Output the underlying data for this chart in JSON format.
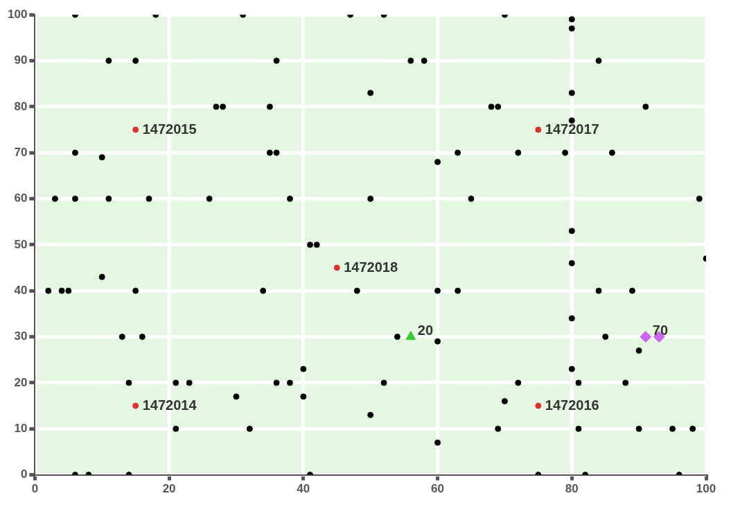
{
  "chart_data": {
    "type": "scatter",
    "xlim": [
      0,
      100
    ],
    "ylim": [
      0,
      100
    ],
    "xticks": [
      0,
      20,
      40,
      60,
      80,
      100
    ],
    "yticks": [
      0,
      10,
      20,
      30,
      40,
      50,
      60,
      70,
      80,
      90,
      100
    ],
    "grid": true,
    "legend": false,
    "marker": "circle",
    "series": [
      {
        "color": "#000000",
        "x": [
          6,
          18,
          31,
          47,
          52,
          70,
          80,
          80,
          11,
          15,
          36,
          56,
          58,
          84,
          27,
          28,
          35,
          50,
          68,
          69,
          80,
          91,
          80,
          6,
          10,
          35,
          36,
          60,
          63,
          72,
          79,
          86,
          3,
          6,
          11,
          17,
          26,
          38,
          50,
          65,
          99,
          80,
          41,
          42,
          100,
          80,
          10,
          2,
          4,
          5,
          15,
          34,
          48,
          60,
          63,
          84,
          89,
          80,
          13,
          16,
          54,
          60,
          85,
          90,
          40,
          80,
          14,
          21,
          23,
          36,
          38,
          52,
          72,
          81,
          88,
          30,
          40,
          70,
          50,
          21,
          32,
          69,
          81,
          90,
          95,
          98,
          60,
          6,
          8,
          14,
          41,
          75,
          82,
          96
        ],
        "values": [
          100,
          100,
          100,
          100,
          100,
          100,
          99,
          97,
          90,
          90,
          90,
          90,
          90,
          90,
          80,
          80,
          80,
          83,
          80,
          80,
          83,
          80,
          77,
          70,
          69,
          70,
          70,
          68,
          70,
          70,
          70,
          70,
          60,
          60,
          60,
          60,
          60,
          60,
          60,
          60,
          60,
          53,
          50,
          50,
          47,
          46,
          43,
          40,
          40,
          40,
          40,
          40,
          40,
          40,
          40,
          40,
          40,
          34,
          30,
          30,
          30,
          29,
          30,
          27,
          23,
          23,
          20,
          20,
          20,
          20,
          20,
          20,
          20,
          20,
          20,
          17,
          17,
          16,
          13,
          10,
          10,
          10,
          10,
          10,
          10,
          10,
          7,
          0,
          0,
          0,
          0,
          0,
          0,
          0
        ]
      },
      {
        "color": "#e03030",
        "x": [
          15,
          75,
          45,
          15,
          75
        ],
        "values": [
          75,
          75,
          45,
          15,
          15
        ]
      },
      {
        "color": "#33cc33",
        "marker": "triangle",
        "x": [
          56
        ],
        "values": [
          30
        ]
      },
      {
        "color": "#cc66ee",
        "marker": "diamond",
        "x": [
          91,
          93
        ],
        "values": [
          30,
          30
        ]
      }
    ],
    "annotations": [
      {
        "text": "1472015",
        "x": 15,
        "y": 75
      },
      {
        "text": "1472017",
        "x": 75,
        "y": 75
      },
      {
        "text": "1472018",
        "x": 45,
        "y": 45
      },
      {
        "text": "1472014",
        "x": 15,
        "y": 15
      },
      {
        "text": "1472016",
        "x": 75,
        "y": 15
      },
      {
        "text": "20",
        "x": 56,
        "y": 30
      },
      {
        "text": "70",
        "x": 91,
        "y": 30
      }
    ]
  }
}
